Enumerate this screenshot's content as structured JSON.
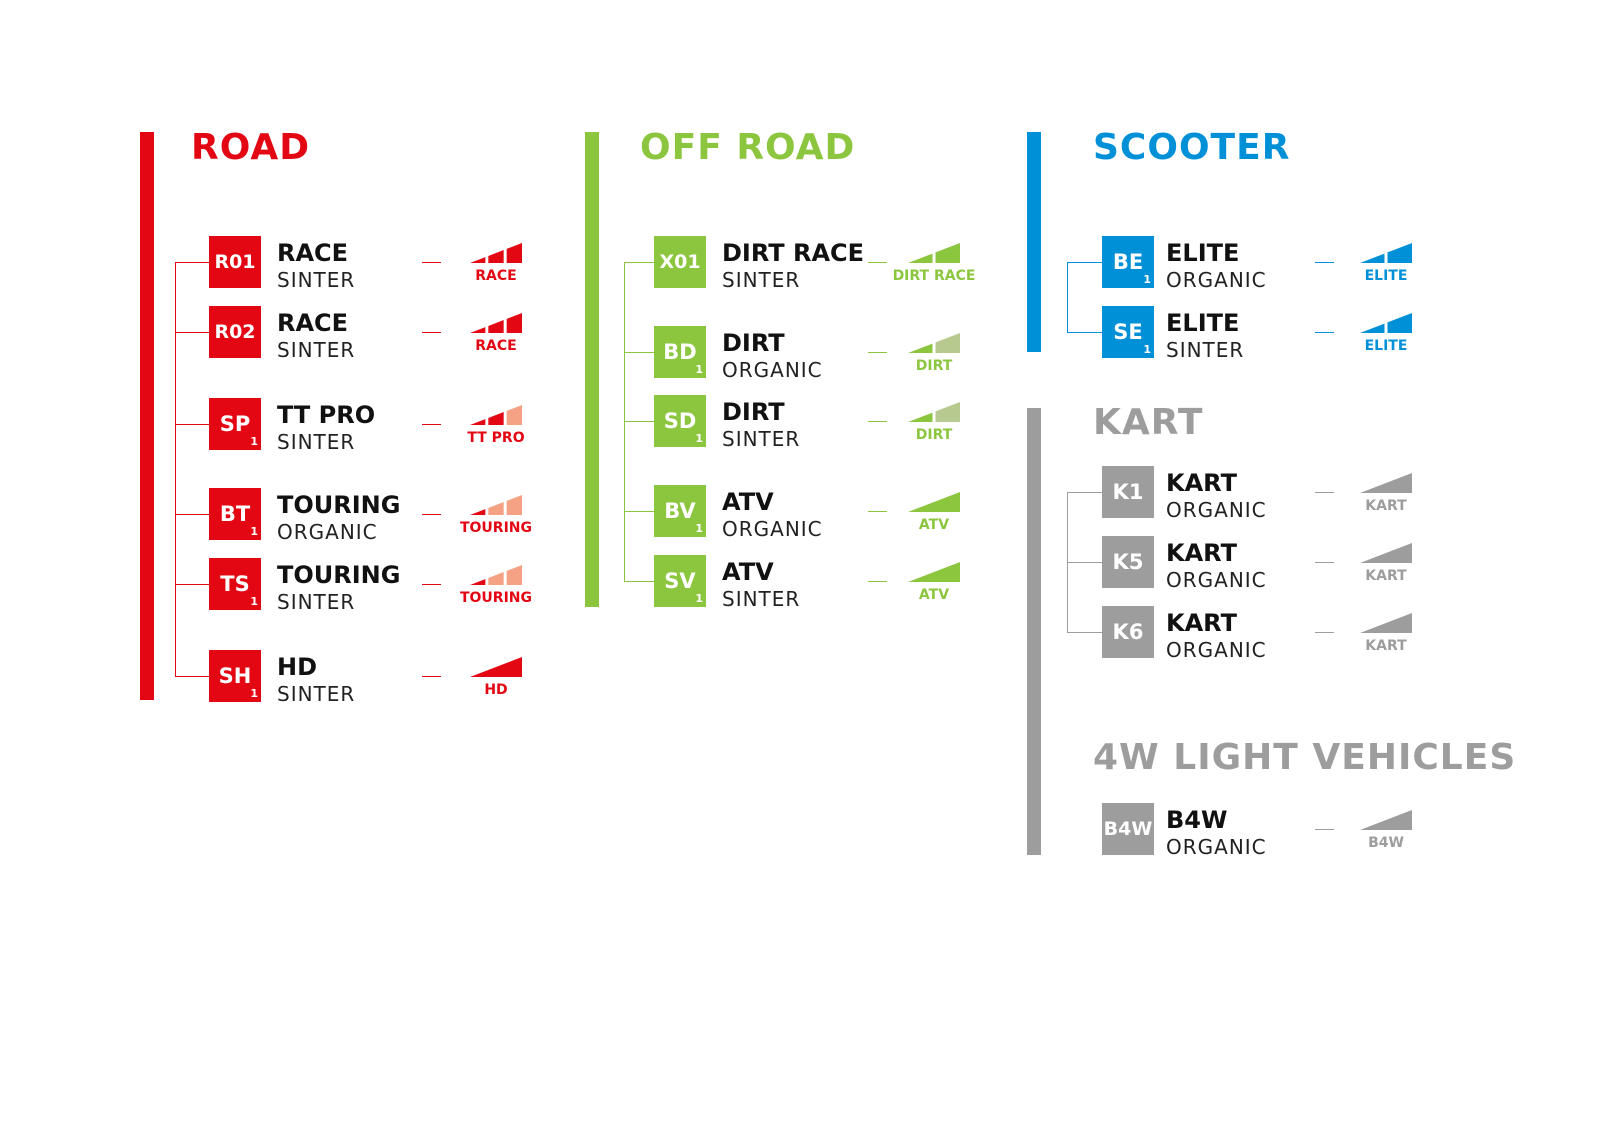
{
  "colors": {
    "road": "#e30613",
    "road_light": "#f4a184",
    "offroad": "#8cc63f",
    "offroad_light": "#b8c98f",
    "scooter": "#0090d8",
    "kart": "#9d9d9d"
  },
  "groups": [
    {
      "id": "road",
      "title": "ROAD",
      "color": "#e30613",
      "light": "#f4a184",
      "items": [
        {
          "code": "R01",
          "sub": "",
          "name": "RACE",
          "type": "SINTER",
          "signal": {
            "label": "RACE",
            "segments": 3,
            "filled": 3
          }
        },
        {
          "code": "R02",
          "sub": "",
          "name": "RACE",
          "type": "SINTER",
          "signal": {
            "label": "RACE",
            "segments": 3,
            "filled": 3
          }
        },
        {
          "code": "SP",
          "sub": "1",
          "name": "TT PRO",
          "type": "SINTER",
          "signal": {
            "label": "TT PRO",
            "segments": 3,
            "filled": 2
          }
        },
        {
          "code": "BT",
          "sub": "1",
          "name": "TOURING",
          "type": "ORGANIC",
          "signal": {
            "label": "TOURING",
            "segments": 3,
            "filled": 1
          }
        },
        {
          "code": "TS",
          "sub": "1",
          "name": "TOURING",
          "type": "SINTER",
          "signal": {
            "label": "TOURING",
            "segments": 3,
            "filled": 1
          }
        },
        {
          "code": "SH",
          "sub": "1",
          "name": "HD",
          "type": "SINTER",
          "signal": {
            "label": "HD",
            "segments": 1,
            "filled": 1
          }
        }
      ]
    },
    {
      "id": "offroad",
      "title": "OFF ROAD",
      "color": "#8cc63f",
      "light": "#b8c98f",
      "items": [
        {
          "code": "X01",
          "sub": "",
          "name": "DIRT RACE",
          "type": "SINTER",
          "signal": {
            "label": "DIRT RACE",
            "segments": 2,
            "filled": 2
          }
        },
        {
          "code": "BD",
          "sub": "1",
          "name": "DIRT",
          "type": "ORGANIC",
          "signal": {
            "label": "DIRT",
            "segments": 2,
            "filled": 1
          }
        },
        {
          "code": "SD",
          "sub": "1",
          "name": "DIRT",
          "type": "SINTER",
          "signal": {
            "label": "DIRT",
            "segments": 2,
            "filled": 1
          }
        },
        {
          "code": "BV",
          "sub": "1",
          "name": "ATV",
          "type": "ORGANIC",
          "signal": {
            "label": "ATV",
            "segments": 1,
            "filled": 1
          }
        },
        {
          "code": "SV",
          "sub": "1",
          "name": "ATV",
          "type": "SINTER",
          "signal": {
            "label": "ATV",
            "segments": 1,
            "filled": 1
          }
        }
      ]
    },
    {
      "id": "scooter",
      "title": "SCOOTER",
      "color": "#0090d8",
      "light": "#0090d8",
      "items": [
        {
          "code": "BE",
          "sub": "1",
          "name": "ELITE",
          "type": "ORGANIC",
          "signal": {
            "label": "ELITE",
            "segments": 2,
            "filled": 2
          }
        },
        {
          "code": "SE",
          "sub": "1",
          "name": "ELITE",
          "type": "SINTER",
          "signal": {
            "label": "ELITE",
            "segments": 2,
            "filled": 2
          }
        }
      ]
    },
    {
      "id": "kart",
      "title": "KART",
      "color": "#9d9d9d",
      "light": "#9d9d9d",
      "items": [
        {
          "code": "K1",
          "sub": "",
          "name": "KART",
          "type": "ORGANIC",
          "signal": {
            "label": "KART",
            "segments": 1,
            "filled": 1
          }
        },
        {
          "code": "K5",
          "sub": "",
          "name": "KART",
          "type": "ORGANIC",
          "signal": {
            "label": "KART",
            "segments": 1,
            "filled": 1
          }
        },
        {
          "code": "K6",
          "sub": "",
          "name": "KART",
          "type": "ORGANIC",
          "signal": {
            "label": "KART",
            "segments": 1,
            "filled": 1
          }
        }
      ]
    },
    {
      "id": "light4w",
      "title": "4W LIGHT VEHICLES",
      "color": "#9d9d9d",
      "light": "#9d9d9d",
      "items": [
        {
          "code": "B4W",
          "sub": "",
          "name": "B4W",
          "type": "ORGANIC",
          "signal": {
            "label": "B4W",
            "segments": 1,
            "filled": 1
          }
        }
      ]
    }
  ]
}
